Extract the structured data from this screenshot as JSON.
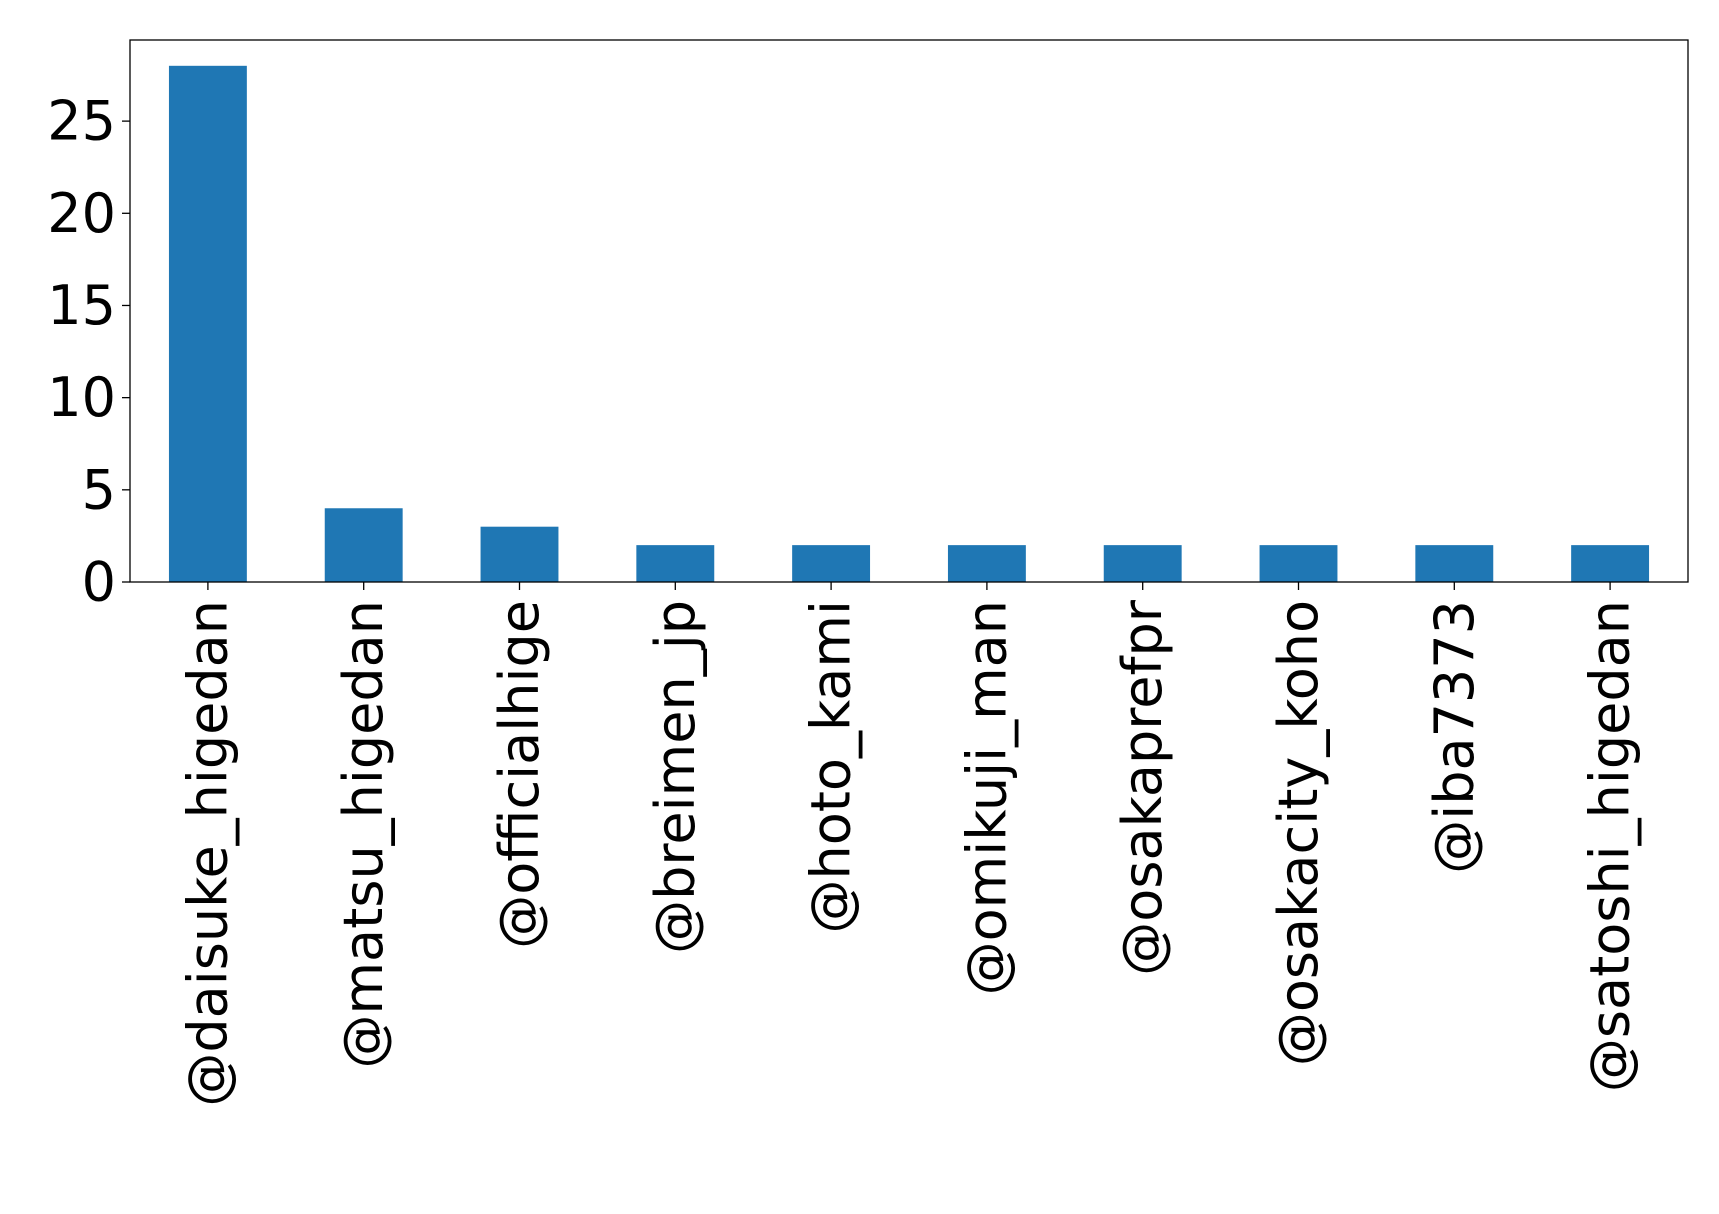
{
  "chart_data": {
    "type": "bar",
    "title": "",
    "xlabel": "",
    "ylabel": "",
    "categories": [
      "@daisuke_higedan",
      "@matsu_higedan",
      "@officialhige",
      "@breimen_jp",
      "@hoto_kami",
      "@omikuji_man",
      "@osakaprefpr",
      "@osakacity_koho",
      "@iba7373",
      "@satoshi_higedan"
    ],
    "values": [
      28,
      4,
      3,
      2,
      2,
      2,
      2,
      2,
      2,
      2
    ],
    "ylim": [
      0,
      29.4
    ],
    "yticks": [
      0,
      5,
      10,
      15,
      20,
      25
    ],
    "grid": false,
    "bar_color": "#1f77b4"
  }
}
